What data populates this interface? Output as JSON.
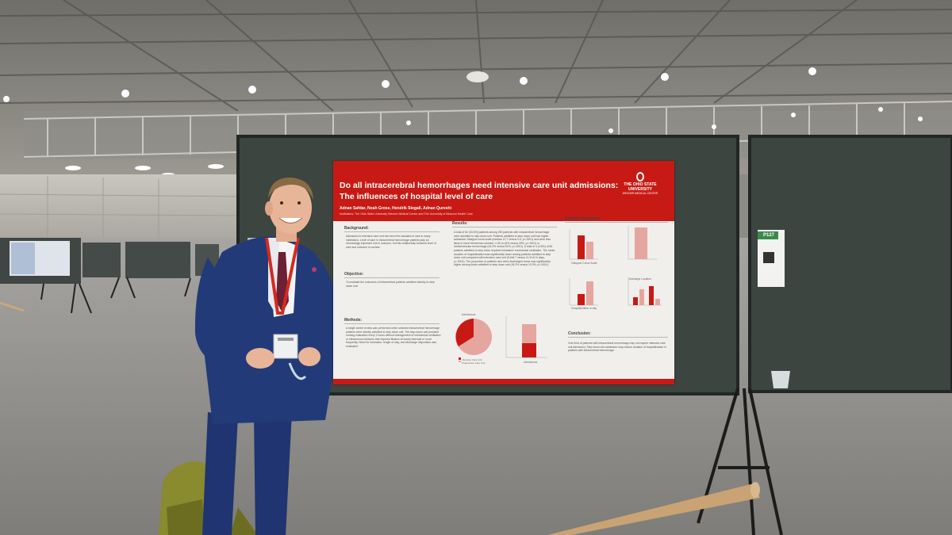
{
  "poster": {
    "title_line1": "Do all intracerebral hemorrhages need intensive care unit admissions:",
    "title_line2": "The influences of hospital level of care",
    "authors": "Adnan Safdar, Noah Grose, Hendrik Stegall, Adnan Qureshi",
    "institutions": "Institutions: The Ohio State University Wexner Medical Center and The University of Missouri Health Care",
    "logo": {
      "line1": "THE OHIO STATE",
      "line2": "UNIVERSITY",
      "line3": "WEXNER MEDICAL CENTER"
    },
    "background": {
      "heading": "Background:",
      "text": "Admission to intensive care unit has been the standard of care in many institutions. Level of care in intracerebral hemorrhage patients play an increasingly important role in outcome, but this relationship between level of care and outcome is unclear."
    },
    "objective": {
      "heading": "Objective:",
      "text": "To evaluate the outcomes of intracerebral patients admitted directly to step down unit."
    },
    "methods": {
      "heading": "Methods:",
      "text": "A single center review was performed when selected intracerebral hemorrhage patients were directly admitted to step down unit. The step-down unit provided nursing evaluation every 2 hours without management of mechanical ventilation or intravenous infusions that required titration at hourly intervals or more frequently. Need for intubation, length of stay, and discharge disposition was evaluated."
    },
    "results": {
      "heading": "Results:",
      "text": "A total of 84 (33.6%) patients among 250 patients with intracerebral hemorrhage were admitted to step down unit. Patients admitted to step down unit had higher admission Glasgow coma scale (median 12.7 versus 9.5, p<.0001) and were less likely to have hematoma volumes >=30 cc (6% versus 33%, p<.0001) or intraventricular hemorrhage (16.3% versus 61%, p<.0001). A total of 4 (4.8%) of 84 patients admitted to step down required intubation/ mechanical ventilation. The mean duration of hospitalization was significantly lower among patients admitted to step down unit compared with intensive care unit (5.6±6.7 versus 11.9±12.6 days, p<.0001). The proportion of patients who were discharged home was significantly higher among those admitted to step down unit (45.2% versus 10.3%, p<.0001)."
    },
    "results_continued": {
      "heading": "Results Continued:"
    },
    "conclusion": {
      "heading": "Conclusion:",
      "text": "One third of patients with intracerebral hemorrhage may not require intensive care unit admission. Step down unit admission may reduce duration of hospitalization in patients with intracerebral hemorrhage."
    },
    "figure_labels": {
      "admissions": "Admissions",
      "admissions2": "Admissions",
      "gcs": "Glasgow Coma Scale",
      "hospitalization": "Hospitalization in day",
      "discharge": "Discharge Location"
    },
    "legend": {
      "icu": "Intensive Care Unit",
      "pcu": "Progressive Care Unit"
    }
  },
  "board_tag": {
    "code": "P127"
  },
  "colors": {
    "poster_red": "#c81a14",
    "board": "#3c4540",
    "suit": "#233a78",
    "lanyard": "#d42a20"
  }
}
